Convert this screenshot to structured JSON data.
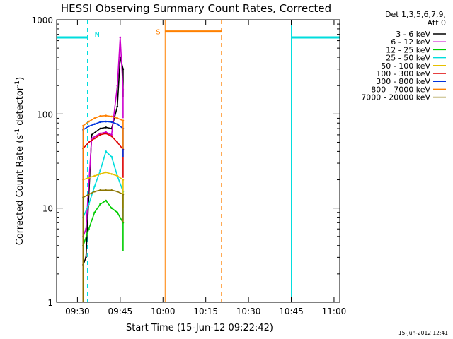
{
  "chart_data": {
    "type": "line",
    "title": "HESSI Observing Summary Count Rates, Corrected",
    "xlabel": "Start Time (15-Jun-12 09:22:42)",
    "ylabel_main": "Corrected Count Rate (s",
    "ylabel_sup1": "-1",
    "ylabel_mid": " detector",
    "ylabel_sup2": "-1",
    "ylabel_end": ")",
    "y_scale": "log",
    "ylim": [
      1,
      1000
    ],
    "xlim": [
      "09:22:42",
      "11:02:00"
    ],
    "x_ticks": [
      "09:30",
      "09:45",
      "10:00",
      "10:15",
      "10:30",
      "10:45",
      "11:00"
    ],
    "y_ticks": [
      "1",
      "10",
      "100",
      "1000"
    ],
    "legend_header": [
      "Det 1,3,5,6,7,9,",
      "Att 0"
    ],
    "legend_position": "right",
    "series": [
      {
        "name": "3 - 6 keV",
        "color": "#000000",
        "points": [
          [
            "09:32",
            2.5
          ],
          [
            "09:33",
            3.0
          ],
          [
            "09:35",
            60
          ],
          [
            "09:38",
            70
          ],
          [
            "09:40",
            72
          ],
          [
            "09:42",
            70
          ],
          [
            "09:44",
            120
          ],
          [
            "09:45",
            400
          ],
          [
            "09:46",
            300
          ]
        ]
      },
      {
        "name": "6 - 12 keV",
        "color": "#cc00cc",
        "points": [
          [
            "09:32",
            5
          ],
          [
            "09:33",
            6
          ],
          [
            "09:35",
            55
          ],
          [
            "09:38",
            62
          ],
          [
            "09:40",
            64
          ],
          [
            "09:42",
            60
          ],
          [
            "09:44",
            200
          ],
          [
            "09:45",
            650
          ],
          [
            "09:46",
            180
          ]
        ]
      },
      {
        "name": "12 - 25 keV",
        "color": "#00cc00",
        "points": [
          [
            "09:32",
            4
          ],
          [
            "09:34",
            6
          ],
          [
            "09:36",
            9
          ],
          [
            "09:38",
            11
          ],
          [
            "09:40",
            12
          ],
          [
            "09:42",
            10
          ],
          [
            "09:44",
            9
          ],
          [
            "09:46",
            7
          ]
        ]
      },
      {
        "name": "25 - 50 keV",
        "color": "#00dddd",
        "points": [
          [
            "09:32",
            8
          ],
          [
            "09:34",
            11
          ],
          [
            "09:36",
            17
          ],
          [
            "09:38",
            25
          ],
          [
            "09:40",
            40
          ],
          [
            "09:42",
            35
          ],
          [
            "09:44",
            22
          ],
          [
            "09:46",
            15
          ]
        ]
      },
      {
        "name": "50 - 100 keV",
        "color": "#e6c000",
        "points": [
          [
            "09:32",
            20
          ],
          [
            "09:34",
            21
          ],
          [
            "09:36",
            22
          ],
          [
            "09:38",
            23
          ],
          [
            "09:40",
            24
          ],
          [
            "09:42",
            23
          ],
          [
            "09:44",
            22
          ],
          [
            "09:46",
            20
          ]
        ]
      },
      {
        "name": "100 - 300 keV",
        "color": "#dd0000",
        "points": [
          [
            "09:32",
            43
          ],
          [
            "09:34",
            50
          ],
          [
            "09:36",
            55
          ],
          [
            "09:38",
            60
          ],
          [
            "09:40",
            62
          ],
          [
            "09:42",
            58
          ],
          [
            "09:44",
            50
          ],
          [
            "09:46",
            42
          ]
        ]
      },
      {
        "name": "300 - 800 keV",
        "color": "#0033dd",
        "points": [
          [
            "09:32",
            68
          ],
          [
            "09:34",
            74
          ],
          [
            "09:36",
            78
          ],
          [
            "09:38",
            82
          ],
          [
            "09:40",
            83
          ],
          [
            "09:42",
            82
          ],
          [
            "09:44",
            78
          ],
          [
            "09:46",
            70
          ]
        ]
      },
      {
        "name": "800 - 7000 keV",
        "color": "#ff8000",
        "points": [
          [
            "09:32",
            75
          ],
          [
            "09:34",
            83
          ],
          [
            "09:36",
            90
          ],
          [
            "09:38",
            95
          ],
          [
            "09:40",
            96
          ],
          [
            "09:42",
            94
          ],
          [
            "09:44",
            90
          ],
          [
            "09:46",
            85
          ]
        ]
      },
      {
        "name": "7000 - 20000 keV",
        "color": "#8b7500",
        "points": [
          [
            "09:32",
            13
          ],
          [
            "09:34",
            14
          ],
          [
            "09:36",
            15
          ],
          [
            "09:38",
            15.5
          ],
          [
            "09:40",
            15.5
          ],
          [
            "09:42",
            15.5
          ],
          [
            "09:44",
            15
          ],
          [
            "09:46",
            14
          ]
        ]
      }
    ],
    "night_flags": [
      {
        "label": "N",
        "start": "09:22:42",
        "end": "09:33:30",
        "color": "#00dddd"
      },
      {
        "label": "",
        "start": "10:45:00",
        "end": "11:02:00",
        "color": "#00dddd"
      }
    ],
    "saa_flag": {
      "label": "S",
      "start": "10:00:45",
      "end": "10:20:30",
      "color": "#ff8000"
    },
    "timestamp": "15-Jun-2012 12:41"
  }
}
